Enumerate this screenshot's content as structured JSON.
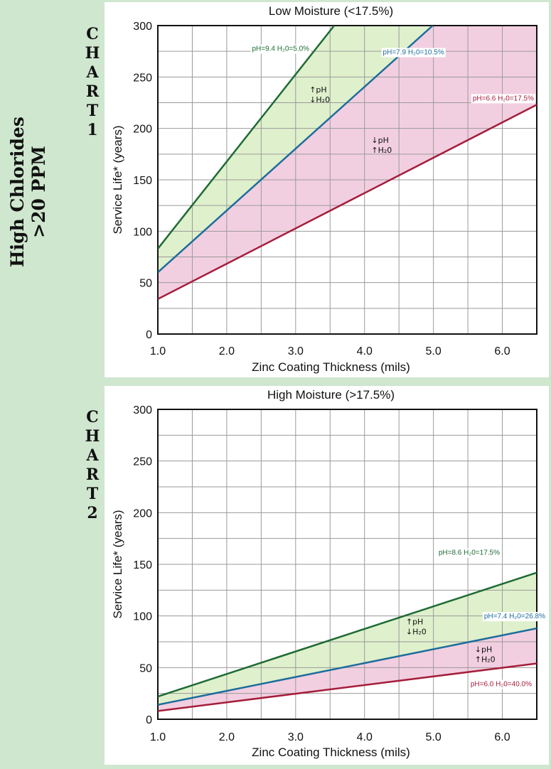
{
  "side_title": {
    "line1": "High Chlorides",
    "line2": ">20 PPM"
  },
  "colors": {
    "high": "#1e6b34",
    "mid": "#1d6d9c",
    "low": "#a51d3c",
    "fill_upper": "#dff0cc",
    "fill_lower": "#f2cfe0",
    "grid": "#9a9a9a"
  },
  "chart_data": [
    {
      "type": "line",
      "chart_label": [
        "C",
        "H",
        "A",
        "R",
        "T",
        "1"
      ],
      "title": "Low Moisture (<17.5%)",
      "xlabel": "Zinc Coating Thickness (mils)",
      "ylabel": "Service Life* (years)",
      "xlim": [
        1.0,
        6.5
      ],
      "ylim": [
        0,
        300
      ],
      "xticks": [
        "1.0",
        "2.0",
        "3.0",
        "4.0",
        "5.0",
        "6.0"
      ],
      "yticks": [
        "0",
        "50",
        "100",
        "150",
        "200",
        "250",
        "300"
      ],
      "grid": true,
      "series": [
        {
          "name": "pH=9.4 H₂0=5.0%",
          "role": "high",
          "x": [
            1.0,
            3.56
          ],
          "y": [
            83,
            300
          ]
        },
        {
          "name": "pH=7.9 H₂0=10.5%",
          "role": "mid",
          "x": [
            1.0,
            4.99
          ],
          "y": [
            60,
            300
          ]
        },
        {
          "name": "pH=6.6 H₂0=17.5%",
          "role": "low",
          "x": [
            1.0,
            6.5
          ],
          "y": [
            34,
            223
          ]
        }
      ],
      "annotations": [
        {
          "arrow1": "↑",
          "text1": "pH",
          "arrow2": "↓",
          "text2": "H₂0",
          "x": 3.2,
          "y": 235
        },
        {
          "arrow1": "↓",
          "text1": "pH",
          "arrow2": "↑",
          "text2": "H₂0",
          "x": 4.1,
          "y": 186
        }
      ]
    },
    {
      "type": "line",
      "chart_label": [
        "C",
        "H",
        "A",
        "R",
        "T",
        "2"
      ],
      "title": "High Moisture (>17.5%)",
      "xlabel": "Zinc Coating Thickness (mils)",
      "ylabel": "Service Life* (years)",
      "xlim": [
        1.0,
        6.5
      ],
      "ylim": [
        0,
        300
      ],
      "xticks": [
        "1.0",
        "2.0",
        "3.0",
        "4.0",
        "5.0",
        "6.0"
      ],
      "yticks": [
        "0",
        "50",
        "100",
        "150",
        "200",
        "250",
        "300"
      ],
      "grid": true,
      "series": [
        {
          "name": "pH=8.6 H₂0=17.5%",
          "role": "high",
          "x": [
            1.0,
            6.5
          ],
          "y": [
            22,
            142
          ]
        },
        {
          "name": "pH=7.4 H₂0=26.8%",
          "role": "mid",
          "x": [
            1.0,
            6.5
          ],
          "y": [
            14,
            88
          ]
        },
        {
          "name": "pH=6.0 H₂0=40.0%",
          "role": "low",
          "x": [
            1.0,
            6.5
          ],
          "y": [
            8,
            54
          ]
        }
      ],
      "annotations": [
        {
          "arrow1": "↑",
          "text1": "pH",
          "arrow2": "↓",
          "text2": "H₂0",
          "x": 4.6,
          "y": 92
        },
        {
          "arrow1": "↓",
          "text1": "pH",
          "arrow2": "↑",
          "text2": "H₂0",
          "x": 5.6,
          "y": 65
        }
      ]
    }
  ]
}
